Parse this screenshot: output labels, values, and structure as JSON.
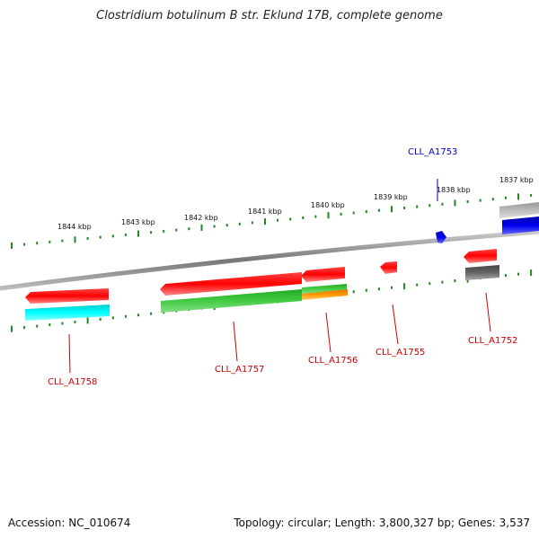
{
  "title": "Clostridium botulinum B str. Eklund 17B, complete genome",
  "footer": {
    "accession": "Accession: NC_010674",
    "info": "Topology: circular; Length: 3,800,327 bp; Genes: 3,537"
  },
  "kbp_labels": [
    "1844 kbp",
    "1843 kbp",
    "1842 kbp",
    "1841 kbp",
    "1840 kbp",
    "1839 kbp",
    "1838 kbp",
    "1837 kbp"
  ],
  "genes": {
    "forward": [
      {
        "label": "CLL_A1753",
        "color": "#0000ee"
      }
    ],
    "reverse": [
      {
        "label": "CLL_A1758",
        "color": "#ff0000"
      },
      {
        "label": "CLL_A1757",
        "color": "#ff0000"
      },
      {
        "label": "CLL_A1756",
        "color": "#ff0000"
      },
      {
        "label": "CLL_A1755",
        "color": "#ff0000"
      },
      {
        "label": "CLL_A1752",
        "color": "#ff0000"
      }
    ]
  },
  "colors": {
    "gene_red": "#ff0000",
    "cyan": "#00ffff",
    "green": "#33bb33",
    "orange": "#ff9900",
    "gray": "#666666",
    "light_gray": "#bbbbbb",
    "blue": "#0000ee",
    "tick_green": "#228822"
  }
}
